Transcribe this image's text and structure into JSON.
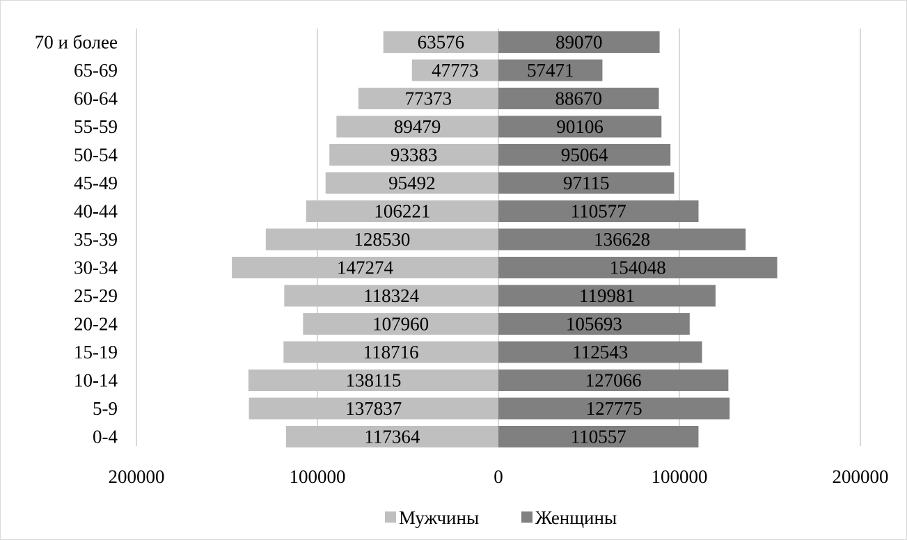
{
  "chart_data": {
    "type": "bar",
    "orientation": "horizontal",
    "layout": "population-pyramid",
    "categories": [
      "70 и более",
      "65-69",
      "60-64",
      "55-59",
      "50-54",
      "45-49",
      "40-44",
      "35-39",
      "30-34",
      "25-29",
      "20-24",
      "15-19",
      "10-14",
      "5-9",
      "0-4"
    ],
    "series": [
      {
        "name": "Мужчины",
        "color": "#bfbfbf",
        "side": "left",
        "values": [
          63576,
          47773,
          77373,
          89479,
          93383,
          95492,
          106221,
          128530,
          147274,
          118324,
          107960,
          118716,
          138115,
          137837,
          117364
        ]
      },
      {
        "name": "Женщины",
        "color": "#808080",
        "side": "right",
        "values": [
          89070,
          57471,
          88670,
          90106,
          95064,
          97115,
          110577,
          136628,
          154048,
          119981,
          105693,
          112543,
          127066,
          127775,
          110557
        ]
      }
    ],
    "x_ticks": [
      "200000",
      "100000",
      "0",
      "100000",
      "200000"
    ],
    "xlim": [
      -200000,
      200000
    ],
    "grid": "vertical",
    "legend": "bottom-center",
    "title": "",
    "xlabel": "",
    "ylabel": ""
  }
}
